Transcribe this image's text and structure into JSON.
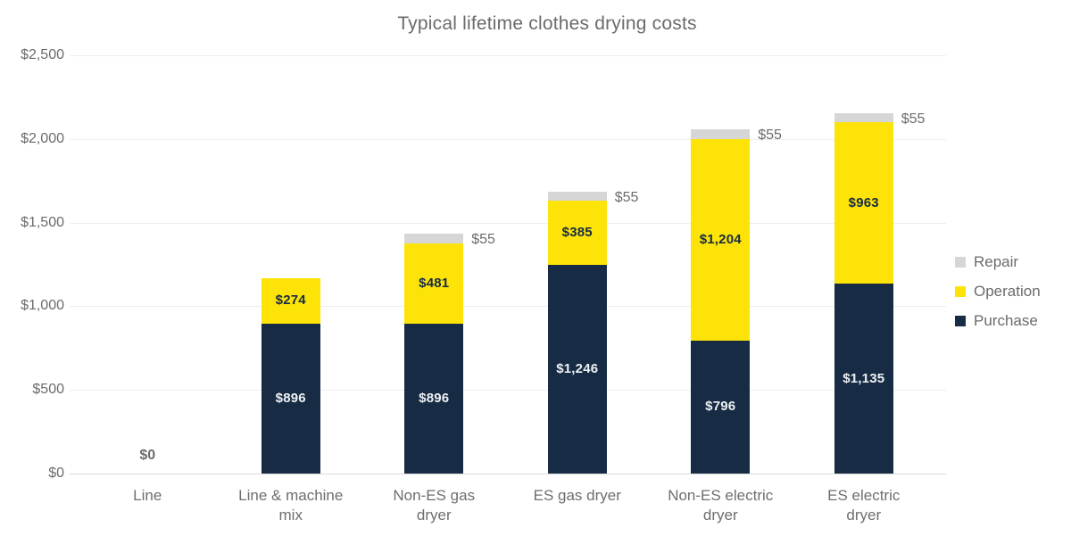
{
  "title": "Typical lifetime clothes drying costs",
  "colors": {
    "purchase_navy": "#172c44",
    "operation_yellow": "#fde307",
    "repair_gray": "#d6d6d6",
    "text_gray": "#6b6b6b",
    "gridline": "#eeeeee",
    "axis_line": "#d9d9d9",
    "label_on_navy": "#eef1f5"
  },
  "chart_data": {
    "type": "bar",
    "stacked": true,
    "title": "Typical lifetime clothes drying costs",
    "categories": [
      "Line",
      "Line & machine\nmix",
      "Non-ES gas\ndryer",
      "ES gas dryer",
      "Non-ES electric\ndryer",
      "ES electric\ndryer"
    ],
    "series": [
      {
        "name": "Purchase",
        "color": "#172c44",
        "values": [
          0,
          896,
          896,
          1246,
          796,
          1135
        ],
        "labels": [
          "",
          "$896",
          "$896",
          "$1,246",
          "$796",
          "$1,135"
        ],
        "label_placement": "inside",
        "label_color": "#eef1f5"
      },
      {
        "name": "Operation",
        "color": "#fde307",
        "values": [
          0,
          274,
          481,
          385,
          1204,
          963
        ],
        "labels": [
          "",
          "$274",
          "$481",
          "$385",
          "$1,204",
          "$963"
        ],
        "label_placement": "inside",
        "label_color": "#172c44"
      },
      {
        "name": "Repair",
        "color": "#d6d6d6",
        "values": [
          0,
          0,
          55,
          55,
          55,
          55
        ],
        "labels": [
          "",
          "",
          "$55",
          "$55",
          "$55",
          "$55"
        ],
        "label_placement": "outside",
        "label_color": "#6b6b6b"
      }
    ],
    "annotations": [
      {
        "category_index": 0,
        "text": "$0"
      }
    ],
    "ylim": [
      0,
      2500
    ],
    "yticks": {
      "values": [
        0,
        500,
        1000,
        1500,
        2000,
        2500
      ],
      "labels": [
        "$0",
        "$500",
        "$1,000",
        "$1,500",
        "$2,000",
        "$2,500"
      ]
    },
    "grid": "horizontal",
    "legend_position": "right"
  },
  "legend": {
    "items": [
      {
        "label": "Repair",
        "color": "#d6d6d6"
      },
      {
        "label": "Operation",
        "color": "#fde307"
      },
      {
        "label": "Purchase",
        "color": "#172c44"
      }
    ]
  }
}
